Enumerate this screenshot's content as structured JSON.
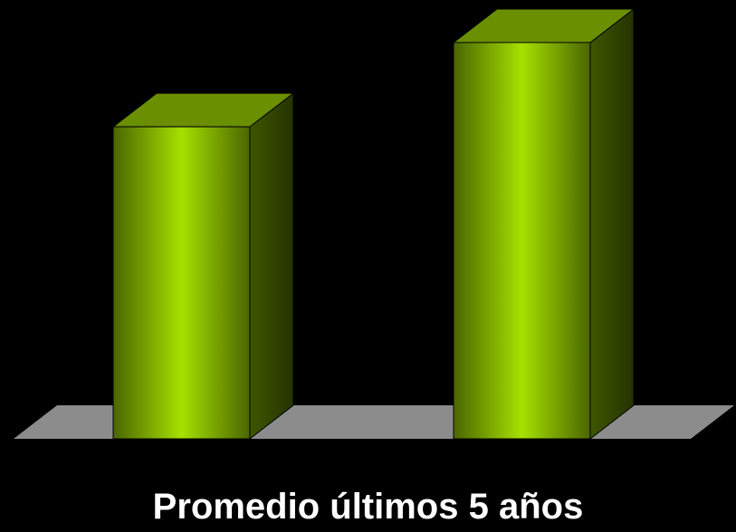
{
  "chart_data": {
    "type": "bar",
    "style": "3d-column",
    "categories": [
      "",
      ""
    ],
    "series": [
      {
        "values": [
          100,
          127
        ]
      }
    ],
    "caption": "Promedio últimos 5 años",
    "ylim": [
      0,
      127
    ],
    "grid": false,
    "legend": "none",
    "colors": {
      "background": "#000000",
      "floor": "#8c8c8c",
      "bar_front_center": "#a6e000",
      "bar_front_edge": "#4a6600",
      "bar_top": "#6a8f00",
      "bar_side": "#3f5600",
      "caption": "#ffffff"
    }
  }
}
